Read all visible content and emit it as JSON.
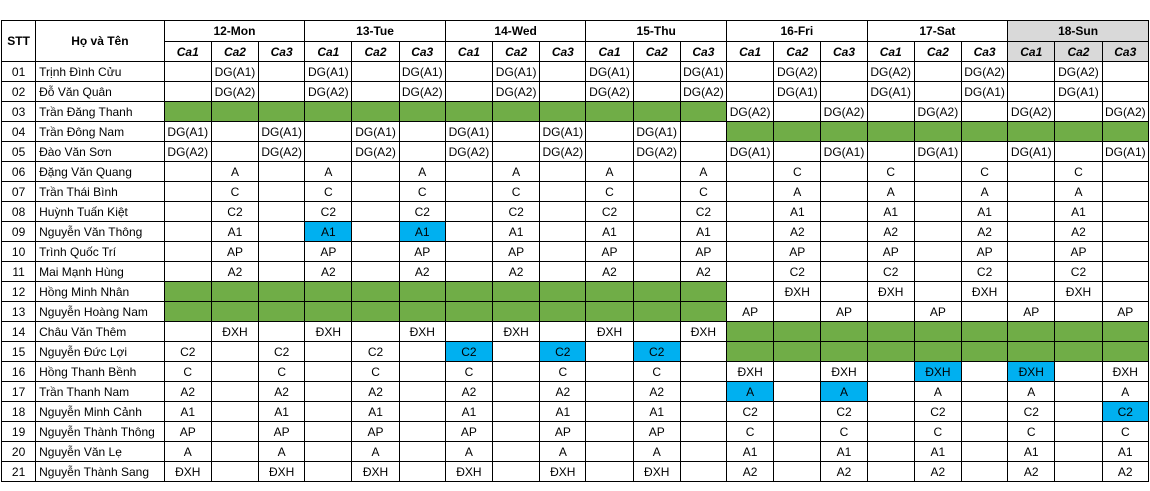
{
  "header": {
    "stt": "STT",
    "name": "Họ và Tên",
    "days": [
      {
        "label": "12-Mon",
        "selected": false
      },
      {
        "label": "13-Tue",
        "selected": false
      },
      {
        "label": "14-Wed",
        "selected": false
      },
      {
        "label": "15-Thu",
        "selected": false
      },
      {
        "label": "16-Fri",
        "selected": false
      },
      {
        "label": "17-Sat",
        "selected": false
      },
      {
        "label": "18-Sun",
        "selected": true
      }
    ],
    "shifts": [
      "Ca1",
      "Ca2",
      "Ca3"
    ]
  },
  "colors": {
    "off": "#70ad47",
    "highlight": "#00b0f0",
    "selected_header": "#d9d9d9"
  },
  "rows": [
    {
      "stt": "01",
      "name": "Trịnh Đình Cửu",
      "cells": [
        "",
        "DG(A1)",
        "",
        "DG(A1)",
        "",
        "DG(A1)",
        "",
        "DG(A1)",
        "",
        "DG(A1)",
        "",
        "DG(A1)",
        "",
        "DG(A2)",
        "",
        "DG(A2)",
        "",
        "DG(A2)",
        "",
        "DG(A2)",
        ""
      ]
    },
    {
      "stt": "02",
      "name": "Đỗ Văn Quân",
      "cells": [
        "",
        "DG(A2)",
        "",
        "DG(A2)",
        "",
        "DG(A2)",
        "",
        "DG(A2)",
        "",
        "DG(A2)",
        "",
        "DG(A2)",
        "",
        "DG(A1)",
        "",
        "DG(A1)",
        "",
        "DG(A1)",
        "",
        "DG(A1)",
        ""
      ]
    },
    {
      "stt": "03",
      "name": "Trần Đăng Thanh",
      "cells": [
        "G",
        "G",
        "G",
        "G",
        "G",
        "G",
        "G",
        "G",
        "G",
        "G",
        "G",
        "G",
        "DG(A2)",
        "",
        "DG(A2)",
        "",
        "DG(A2)",
        "",
        "DG(A2)",
        "",
        "DG(A2)"
      ]
    },
    {
      "stt": "04",
      "name": "Trần Đông Nam",
      "cells": [
        "DG(A1)",
        "",
        "DG(A1)",
        "",
        "DG(A1)",
        "",
        "DG(A1)",
        "",
        "DG(A1)",
        "",
        "DG(A1)",
        "",
        "G",
        "G",
        "G",
        "G",
        "G",
        "G",
        "G",
        "G",
        "G"
      ]
    },
    {
      "stt": "05",
      "name": "Đào Văn Sơn",
      "cells": [
        "DG(A2)",
        "",
        "DG(A2)",
        "",
        "DG(A2)",
        "",
        "DG(A2)",
        "",
        "DG(A2)",
        "",
        "DG(A2)",
        "",
        "DG(A1)",
        "",
        "DG(A1)",
        "",
        "DG(A1)",
        "",
        "DG(A1)",
        "",
        "DG(A1)"
      ]
    },
    {
      "stt": "06",
      "name": "Đặng Văn Quang",
      "cells": [
        "",
        "A",
        "",
        "A",
        "",
        "A",
        "",
        "A",
        "",
        "A",
        "",
        "A",
        "",
        "C",
        "",
        "C",
        "",
        "C",
        "",
        "C",
        ""
      ]
    },
    {
      "stt": "07",
      "name": "Trần Thái Bình",
      "cells": [
        "",
        "C",
        "",
        "C",
        "",
        "C",
        "",
        "C",
        "",
        "C",
        "",
        "C",
        "",
        "A",
        "",
        "A",
        "",
        "A",
        "",
        "A",
        ""
      ]
    },
    {
      "stt": "08",
      "name": "Huỳnh Tuấn Kiệt",
      "cells": [
        "",
        "C2",
        "",
        "C2",
        "",
        "C2",
        "",
        "C2",
        "",
        "C2",
        "",
        "C2",
        "",
        "A1",
        "",
        "A1",
        "",
        "A1",
        "",
        "A1",
        ""
      ]
    },
    {
      "stt": "09",
      "name": "Nguyễn Văn Thông",
      "cells": [
        "",
        "A1",
        "",
        "B:A1",
        "",
        "B:A1",
        "",
        "A1",
        "",
        "A1",
        "",
        "A1",
        "",
        "A2",
        "",
        "A2",
        "",
        "A2",
        "",
        "A2",
        ""
      ]
    },
    {
      "stt": "10",
      "name": "Trình Quốc Trí",
      "cells": [
        "",
        "AP",
        "",
        "AP",
        "",
        "AP",
        "",
        "AP",
        "",
        "AP",
        "",
        "AP",
        "",
        "AP",
        "",
        "AP",
        "",
        "AP",
        "",
        "AP",
        ""
      ]
    },
    {
      "stt": "11",
      "name": "Mai Mạnh Hùng",
      "cells": [
        "",
        "A2",
        "",
        "A2",
        "",
        "A2",
        "",
        "A2",
        "",
        "A2",
        "",
        "A2",
        "",
        "C2",
        "",
        "C2",
        "",
        "C2",
        "",
        "C2",
        ""
      ]
    },
    {
      "stt": "12",
      "name": "Hồng Minh Nhân",
      "cells": [
        "G",
        "G",
        "G",
        "G",
        "G",
        "G",
        "G",
        "G",
        "G",
        "G",
        "G",
        "G",
        "",
        "ĐXH",
        "",
        "ĐXH",
        "",
        "ĐXH",
        "",
        "ĐXH",
        ""
      ]
    },
    {
      "stt": "13",
      "name": "Nguyễn Hoàng Nam",
      "cells": [
        "G",
        "G",
        "G",
        "G",
        "G",
        "G",
        "G",
        "G",
        "G",
        "G",
        "G",
        "G",
        "AP",
        "",
        "AP",
        "",
        "AP",
        "",
        "AP",
        "",
        "AP"
      ]
    },
    {
      "stt": "14",
      "name": "Châu Văn Thêm",
      "cells": [
        "",
        "ĐXH",
        "",
        "ĐXH",
        "",
        "ĐXH",
        "",
        "ĐXH",
        "",
        "ĐXH",
        "",
        "ĐXH",
        "G",
        "G",
        "G",
        "G",
        "G",
        "G",
        "G",
        "G",
        "G"
      ]
    },
    {
      "stt": "15",
      "name": "Nguyễn Đức Lợi",
      "cells": [
        "C2",
        "",
        "C2",
        "",
        "C2",
        "",
        "B:C2",
        "",
        "B:C2",
        "",
        "B:C2",
        "",
        "G",
        "G",
        "G",
        "G",
        "G",
        "G",
        "G",
        "G",
        "G"
      ]
    },
    {
      "stt": "16",
      "name": "Hồng Thanh Bềnh",
      "cells": [
        "C",
        "",
        "C",
        "",
        "C",
        "",
        "C",
        "",
        "C",
        "",
        "C",
        "",
        "ĐXH",
        "",
        "ĐXH",
        "",
        "B:ĐXH",
        "",
        "B:ĐXH",
        "",
        "ĐXH"
      ]
    },
    {
      "stt": "17",
      "name": "Trần Thanh Nam",
      "cells": [
        "A2",
        "",
        "A2",
        "",
        "A2",
        "",
        "A2",
        "",
        "A2",
        "",
        "A2",
        "",
        "B:A",
        "",
        "B:A",
        "",
        "A",
        "",
        "A",
        "",
        "A"
      ]
    },
    {
      "stt": "18",
      "name": "Nguyễn Minh Cảnh",
      "cells": [
        "A1",
        "",
        "A1",
        "",
        "A1",
        "",
        "A1",
        "",
        "A1",
        "",
        "A1",
        "",
        "C2",
        "",
        "C2",
        "",
        "C2",
        "",
        "C2",
        "",
        "B:C2"
      ]
    },
    {
      "stt": "19",
      "name": "Nguyễn Thành Thông",
      "cells": [
        "AP",
        "",
        "AP",
        "",
        "AP",
        "",
        "AP",
        "",
        "AP",
        "",
        "AP",
        "",
        "C",
        "",
        "C",
        "",
        "C",
        "",
        "C",
        "",
        "C"
      ]
    },
    {
      "stt": "20",
      "name": "Nguyễn Văn Lẹ",
      "cells": [
        "A",
        "",
        "A",
        "",
        "A",
        "",
        "A",
        "",
        "A",
        "",
        "A",
        "",
        "A1",
        "",
        "A1",
        "",
        "A1",
        "",
        "A1",
        "",
        "A1"
      ]
    },
    {
      "stt": "21",
      "name": "Nguyễn Thành Sang",
      "cells": [
        "ĐXH",
        "",
        "ĐXH",
        "",
        "ĐXH",
        "",
        "ĐXH",
        "",
        "ĐXH",
        "",
        "ĐXH",
        "",
        "A2",
        "",
        "A2",
        "",
        "A2",
        "",
        "A2",
        "",
        "A2"
      ]
    }
  ]
}
